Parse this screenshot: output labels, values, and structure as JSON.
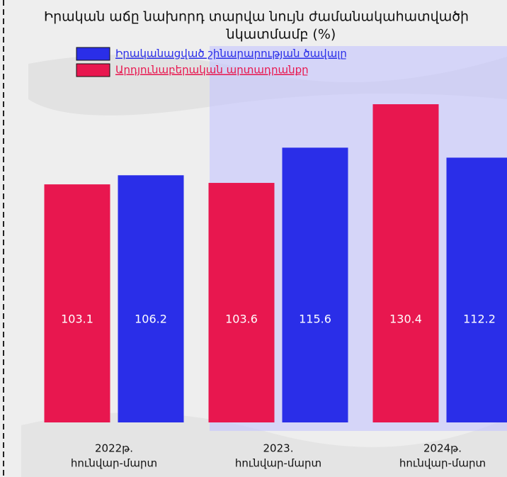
{
  "chart_data": {
    "type": "bar",
    "title": [
      "Իրական աճը նախորդ տարվա նույն ժամանակահատվածի",
      "նկատմամբ (%)"
    ],
    "categories": [
      [
        "2022թ.",
        "հունվար-մարտ"
      ],
      [
        "2023.",
        "հունվար-մարտ"
      ],
      [
        "2024թ.",
        "հունվար-մարտ"
      ]
    ],
    "series": [
      {
        "name": "Արդյունաբերական արտադրանքը",
        "color": "#e8174f",
        "values": [
          103.1,
          103.6,
          130.4
        ]
      },
      {
        "name": "Իրականացված շինարարության ծավալը",
        "color": "#2a2ee8",
        "values": [
          106.2,
          115.6,
          112.2
        ]
      }
    ],
    "ylim": [
      22,
      135
    ]
  }
}
